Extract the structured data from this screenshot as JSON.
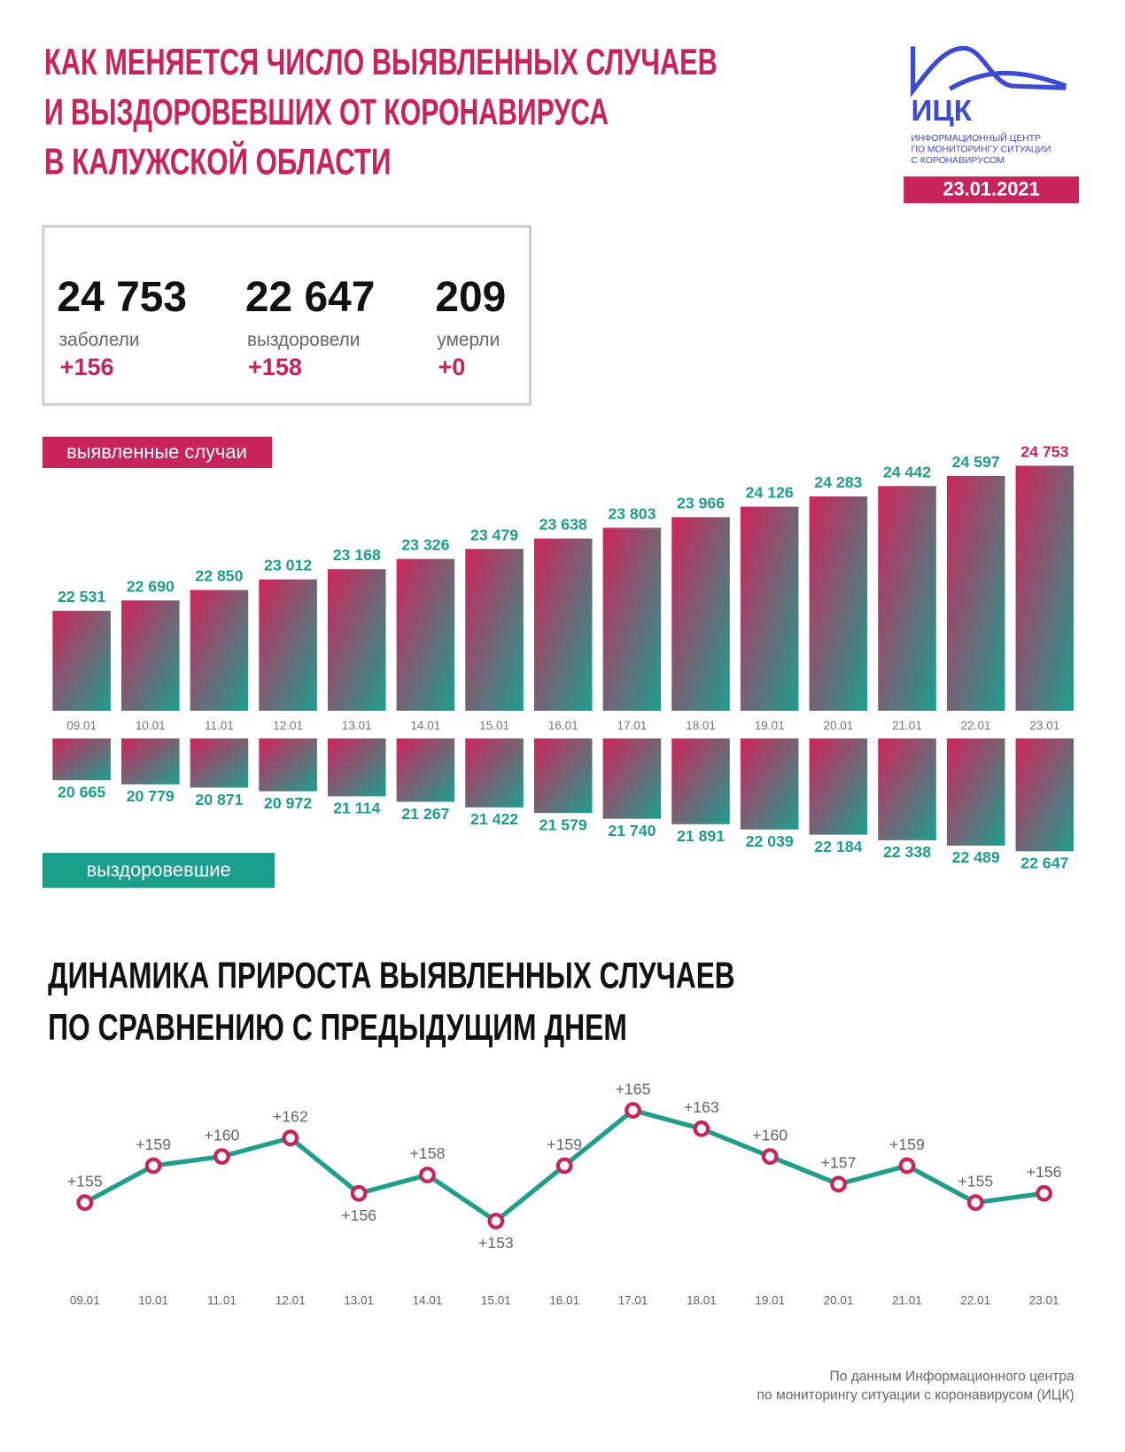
{
  "header": {
    "title_lines": [
      "КАК МЕНЯЕТСЯ ЧИСЛО ВЫЯВЛЕННЫХ СЛУЧАЕВ",
      "И ВЫЗДОРОВЕВШИХ ОТ КОРОНАВИРУСА",
      "В КАЛУЖСКОЙ ОБЛАСТИ"
    ],
    "logo": "ИЦК",
    "logo_lines": [
      "ИНФОРМАЦИОННЫЙ ЦЕНТР",
      "ПО МОНИТОРИНГУ СИТУАЦИИ",
      "С КОРОНАВИРУСОМ"
    ],
    "date": "23.01.2021"
  },
  "summary": [
    {
      "value": "24 753",
      "label": "заболели",
      "delta": "+156"
    },
    {
      "value": "22 647",
      "label": "выздоровели",
      "delta": "+158"
    },
    {
      "value": "209",
      "label": "умерли",
      "delta": "+0"
    }
  ],
  "chart_data": [
    {
      "type": "bar",
      "title": "выявленные случаи",
      "colors": [
        "#d0245c",
        "#1aa08e"
      ],
      "label_color": "#1b9e8c",
      "highlight_color": "#c8235a",
      "categories": [
        "09.01",
        "10.01",
        "11.01",
        "12.01",
        "13.01",
        "14.01",
        "15.01",
        "16.01",
        "17.01",
        "18.01",
        "19.01",
        "20.01",
        "21.01",
        "22.01",
        "23.01"
      ],
      "values": [
        22531,
        22690,
        22850,
        23012,
        23168,
        23326,
        23479,
        23638,
        23803,
        23966,
        24126,
        24283,
        24442,
        24597,
        24753
      ],
      "value_labels": [
        "22 531",
        "22 690",
        "22 850",
        "23 012",
        "23 168",
        "23 326",
        "23 479",
        "23 638",
        "23 803",
        "23 966",
        "24 126",
        "24 283",
        "24 442",
        "24 597",
        "24 753"
      ],
      "ylim": [
        21000,
        25000
      ]
    },
    {
      "type": "bar",
      "title": "выздоровевшие",
      "inverted": true,
      "colors": [
        "#d0245c",
        "#1aa08e"
      ],
      "label_color": "#1b9e8c",
      "values": [
        20665,
        20779,
        20871,
        20972,
        21114,
        21267,
        21422,
        21579,
        21740,
        21891,
        22039,
        22184,
        22338,
        22489,
        22647
      ],
      "value_labels": [
        "20 665",
        "20 779",
        "20 871",
        "20 972",
        "21 114",
        "21 267",
        "21 422",
        "21 579",
        "21 740",
        "21 891",
        "22 039",
        "22 184",
        "22 338",
        "22 489",
        "22 647"
      ],
      "ylim": [
        19500,
        23000
      ]
    },
    {
      "type": "line",
      "title_lines": [
        "ДИНАМИКА ПРИРОСТА ВЫЯВЛЕННЫХ СЛУЧАЕВ",
        "ПО СРАВНЕНИЮ С ПРЕДЫДУЩИМ ДНЕМ"
      ],
      "color": "#1f9e8c",
      "marker_color": "#c8235a",
      "categories": [
        "09.01",
        "10.01",
        "11.01",
        "12.01",
        "13.01",
        "14.01",
        "15.01",
        "16.01",
        "17.01",
        "18.01",
        "19.01",
        "20.01",
        "21.01",
        "22.01",
        "23.01"
      ],
      "values": [
        155,
        159,
        160,
        162,
        156,
        158,
        153,
        159,
        165,
        163,
        160,
        157,
        159,
        155,
        156
      ],
      "value_labels": [
        "+155",
        "+159",
        "+160",
        "+162",
        "+156",
        "+158",
        "+153",
        "+159",
        "+165",
        "+163",
        "+160",
        "+157",
        "+159",
        "+155",
        "+156"
      ],
      "ylim": [
        150,
        168
      ]
    }
  ],
  "footer": [
    "По данным Информационного центра",
    "по мониторингу ситуации с коронавирусом (ИЦК)"
  ]
}
